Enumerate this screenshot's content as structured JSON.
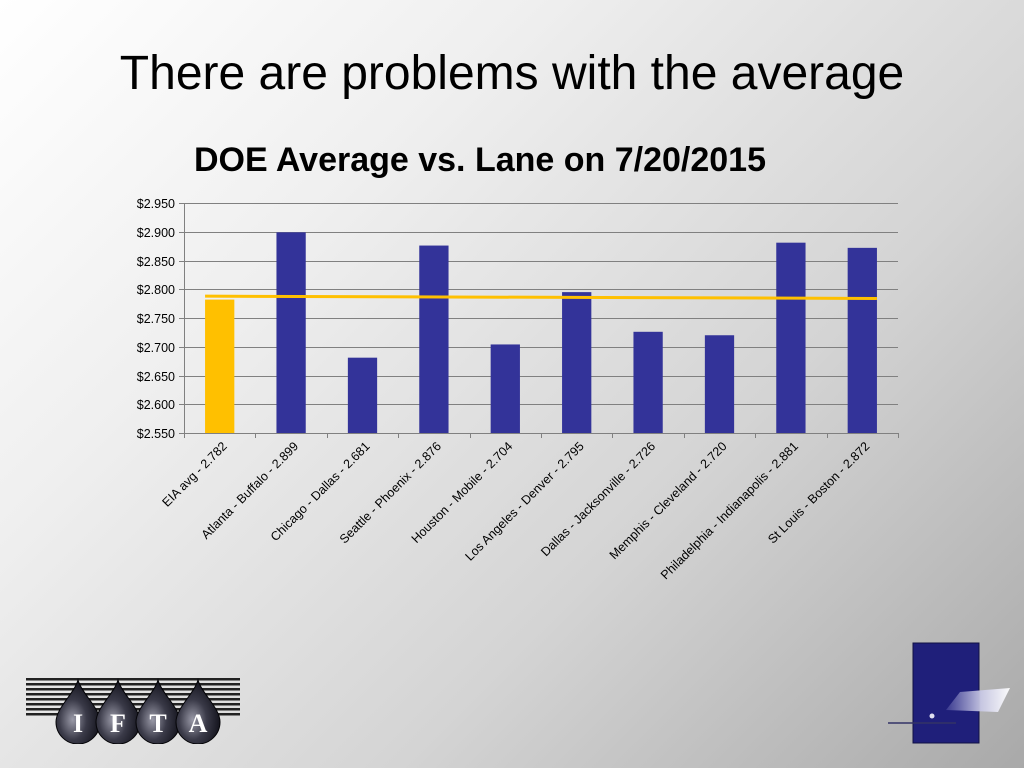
{
  "slide": {
    "title": "There are problems with the average"
  },
  "colors": {
    "bar_default": "#333399",
    "bar_highlight": "#FFC000",
    "average_line": "#FFC000",
    "gridline": "#808080",
    "logo_blue": "#1f1f7a"
  },
  "icons": {
    "left_logo": "ifta-droplets-logo",
    "right_logo": "blue-square-wing-logo"
  },
  "logo": {
    "letters": [
      "I",
      "F",
      "T",
      "A"
    ]
  },
  "chart_data": {
    "type": "bar",
    "title": "DOE  Average vs. Lane on 7/20/2015",
    "xlabel": "",
    "ylabel": "",
    "ylim": [
      2.55,
      2.95
    ],
    "yticks": [
      2.55,
      2.6,
      2.65,
      2.7,
      2.75,
      2.8,
      2.85,
      2.9,
      2.95
    ],
    "ytick_labels": [
      "$2.550",
      "$2.600",
      "$2.650",
      "$2.700",
      "$2.750",
      "$2.800",
      "$2.850",
      "$2.900",
      "$2.950"
    ],
    "grid": true,
    "categories": [
      "EIA avg - 2.782",
      "Atlanta - Buffalo - 2.899",
      "Chicago - Dallas - 2.681",
      "Seattle  - Phoenix - 2.876",
      "Houston - Mobile - 2.704",
      "Los Angeles - Denver - 2.795",
      "Dallas - Jacksonville - 2.726",
      "Memphis - Cleveland - 2.720",
      "Philadelphia - Indianapolis - 2.881",
      "St Louis - Boston - 2.872"
    ],
    "values": [
      2.782,
      2.899,
      2.681,
      2.876,
      2.704,
      2.795,
      2.726,
      2.72,
      2.881,
      2.872
    ],
    "highlight_index": 0,
    "reference_line": {
      "start": 2.788,
      "end": 2.784
    }
  }
}
